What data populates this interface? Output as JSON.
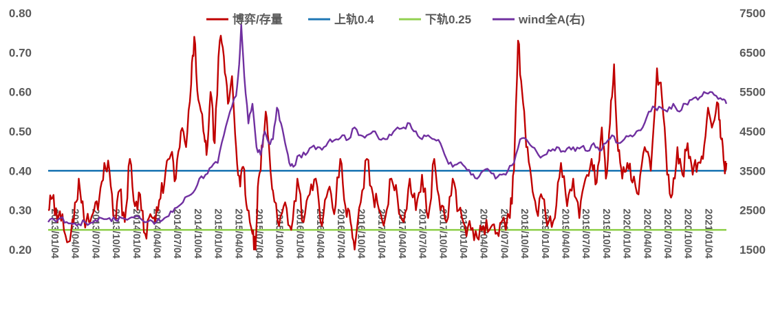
{
  "chart_data": {
    "type": "line",
    "title": "",
    "xlabel": "",
    "ylabel": "",
    "ylim": [
      0.2,
      0.8
    ],
    "y2lim": [
      1500,
      7500
    ],
    "y_ticks": [
      "0.20",
      "0.30",
      "0.40",
      "0.50",
      "0.60",
      "0.70",
      "0.80"
    ],
    "y2_ticks": [
      "1500",
      "2500",
      "3500",
      "4500",
      "5500",
      "6500",
      "7500"
    ],
    "x_ticks": [
      "2013/01/04",
      "2013/04/04",
      "2013/07/04",
      "2013/10/04",
      "2014/01/04",
      "2014/04/04",
      "2014/07/04",
      "2014/10/04",
      "2015/01/04",
      "2015/04/04",
      "2015/07/04",
      "2015/10/04",
      "2016/01/04",
      "2016/04/04",
      "2016/07/04",
      "2016/10/04",
      "2017/01/04",
      "2017/04/04",
      "2017/07/04",
      "2017/10/04",
      "2018/01/04",
      "2018/04/04",
      "2018/07/04",
      "2018/10/04",
      "2019/01/04",
      "2019/04/04",
      "2019/07/04",
      "2019/10/04",
      "2020/01/04",
      "2020/04/04",
      "2020/07/04",
      "2020/10/04",
      "2021/01/04"
    ],
    "legend_position": "top",
    "series": [
      {
        "name": "博弈/存量",
        "axis": "left",
        "color": "#C00000",
        "anchors": [
          [
            0,
            0.3
          ],
          [
            0.2,
            0.33
          ],
          [
            0.45,
            0.27
          ],
          [
            0.7,
            0.29
          ],
          [
            1,
            0.22
          ],
          [
            1.25,
            0.27
          ],
          [
            1.5,
            0.38
          ],
          [
            1.75,
            0.28
          ],
          [
            2,
            0.27
          ],
          [
            2.25,
            0.3
          ],
          [
            2.5,
            0.33
          ],
          [
            2.75,
            0.42
          ],
          [
            3,
            0.4
          ],
          [
            3.25,
            0.28
          ],
          [
            3.5,
            0.35
          ],
          [
            3.75,
            0.27
          ],
          [
            4,
            0.43
          ],
          [
            4.25,
            0.31
          ],
          [
            4.5,
            0.34
          ],
          [
            4.75,
            0.24
          ],
          [
            5,
            0.29
          ],
          [
            5.25,
            0.27
          ],
          [
            5.5,
            0.33
          ],
          [
            5.75,
            0.4
          ],
          [
            6,
            0.44
          ],
          [
            6.25,
            0.38
          ],
          [
            6.5,
            0.5
          ],
          [
            6.75,
            0.46
          ],
          [
            7,
            0.62
          ],
          [
            7.15,
            0.74
          ],
          [
            7.35,
            0.58
          ],
          [
            7.6,
            0.5
          ],
          [
            7.75,
            0.44
          ],
          [
            7.95,
            0.6
          ],
          [
            8.15,
            0.47
          ],
          [
            8.4,
            0.73
          ],
          [
            8.6,
            0.69
          ],
          [
            8.8,
            0.57
          ],
          [
            9,
            0.64
          ],
          [
            9.2,
            0.46
          ],
          [
            9.4,
            0.36
          ],
          [
            9.55,
            0.41
          ],
          [
            9.75,
            0.3
          ],
          [
            10,
            0.24
          ],
          [
            10.15,
            0.2
          ],
          [
            10.3,
            0.38
          ],
          [
            10.5,
            0.46
          ],
          [
            10.65,
            0.55
          ],
          [
            10.85,
            0.43
          ],
          [
            11,
            0.35
          ],
          [
            11.3,
            0.26
          ],
          [
            11.6,
            0.32
          ],
          [
            11.9,
            0.25
          ],
          [
            12.2,
            0.38
          ],
          [
            12.5,
            0.27
          ],
          [
            12.8,
            0.34
          ],
          [
            13.1,
            0.38
          ],
          [
            13.4,
            0.26
          ],
          [
            13.7,
            0.35
          ],
          [
            14,
            0.29
          ],
          [
            14.3,
            0.43
          ],
          [
            14.55,
            0.31
          ],
          [
            14.8,
            0.27
          ],
          [
            15,
            0.2
          ],
          [
            15.3,
            0.32
          ],
          [
            15.6,
            0.43
          ],
          [
            15.9,
            0.34
          ],
          [
            16.2,
            0.3
          ],
          [
            16.5,
            0.28
          ],
          [
            16.8,
            0.38
          ],
          [
            17.1,
            0.33
          ],
          [
            17.4,
            0.27
          ],
          [
            17.7,
            0.38
          ],
          [
            18,
            0.3
          ],
          [
            18.3,
            0.39
          ],
          [
            18.6,
            0.28
          ],
          [
            18.9,
            0.43
          ],
          [
            19.2,
            0.3
          ],
          [
            19.5,
            0.27
          ],
          [
            19.8,
            0.38
          ],
          [
            20.1,
            0.3
          ],
          [
            20.4,
            0.26
          ],
          [
            20.7,
            0.25
          ],
          [
            21,
            0.23
          ],
          [
            21.3,
            0.26
          ],
          [
            21.6,
            0.25
          ],
          [
            21.9,
            0.24
          ],
          [
            22.2,
            0.27
          ],
          [
            22.6,
            0.28
          ],
          [
            22.8,
            0.4
          ],
          [
            23.0,
            0.73
          ],
          [
            23.2,
            0.6
          ],
          [
            23.4,
            0.46
          ],
          [
            23.65,
            0.38
          ],
          [
            23.9,
            0.3
          ],
          [
            24.2,
            0.33
          ],
          [
            24.5,
            0.27
          ],
          [
            24.8,
            0.28
          ],
          [
            25.1,
            0.42
          ],
          [
            25.4,
            0.31
          ],
          [
            25.7,
            0.38
          ],
          [
            26,
            0.28
          ],
          [
            26.3,
            0.38
          ],
          [
            26.6,
            0.43
          ],
          [
            26.85,
            0.37
          ],
          [
            27.1,
            0.51
          ],
          [
            27.3,
            0.38
          ],
          [
            27.5,
            0.52
          ],
          [
            27.7,
            0.67
          ],
          [
            27.9,
            0.45
          ],
          [
            28.1,
            0.38
          ],
          [
            28.35,
            0.42
          ],
          [
            28.6,
            0.37
          ],
          [
            28.9,
            0.34
          ],
          [
            29.2,
            0.46
          ],
          [
            29.5,
            0.4
          ],
          [
            29.8,
            0.66
          ],
          [
            30.05,
            0.58
          ],
          [
            30.3,
            0.39
          ],
          [
            30.55,
            0.34
          ],
          [
            30.8,
            0.46
          ],
          [
            31.05,
            0.39
          ],
          [
            31.3,
            0.47
          ],
          [
            31.55,
            0.39
          ],
          [
            31.8,
            0.42
          ],
          [
            32.05,
            0.43
          ],
          [
            32.3,
            0.56
          ],
          [
            32.55,
            0.52
          ],
          [
            32.8,
            0.57
          ],
          [
            32.95,
            0.48
          ],
          [
            33.1,
            0.41
          ],
          [
            33.2,
            0.42
          ]
        ]
      },
      {
        "name": "上轨0.4",
        "axis": "left",
        "color": "#1F77B4",
        "value": 0.4
      },
      {
        "name": "下轨0.25",
        "axis": "left",
        "color": "#92D050",
        "value": 0.25
      },
      {
        "name": "wind全A(右)",
        "axis": "right",
        "color": "#7030A0",
        "anchors": [
          [
            0,
            2200
          ],
          [
            0.3,
            2250
          ],
          [
            0.6,
            2300
          ],
          [
            0.9,
            2200
          ],
          [
            1.2,
            2150
          ],
          [
            1.5,
            2150
          ],
          [
            1.8,
            2200
          ],
          [
            2,
            2150
          ],
          [
            2.3,
            2250
          ],
          [
            2.6,
            2300
          ],
          [
            3,
            2300
          ],
          [
            3.3,
            2250
          ],
          [
            3.6,
            2300
          ],
          [
            4,
            2300
          ],
          [
            4.3,
            2350
          ],
          [
            4.6,
            2250
          ],
          [
            5,
            2250
          ],
          [
            5.3,
            2200
          ],
          [
            5.6,
            2250
          ],
          [
            5.9,
            2350
          ],
          [
            6.2,
            2550
          ],
          [
            6.5,
            2650
          ],
          [
            6.8,
            2850
          ],
          [
            7.1,
            2950
          ],
          [
            7.4,
            3300
          ],
          [
            7.7,
            3400
          ],
          [
            8.0,
            3600
          ],
          [
            8.3,
            3700
          ],
          [
            8.6,
            4400
          ],
          [
            8.9,
            5000
          ],
          [
            9.2,
            5400
          ],
          [
            9.35,
            6200
          ],
          [
            9.45,
            7200
          ],
          [
            9.6,
            5900
          ],
          [
            9.8,
            4700
          ],
          [
            10,
            5200
          ],
          [
            10.2,
            4100
          ],
          [
            10.4,
            3900
          ],
          [
            10.6,
            4500
          ],
          [
            10.8,
            4200
          ],
          [
            11,
            4300
          ],
          [
            11.2,
            5100
          ],
          [
            11.4,
            4700
          ],
          [
            11.6,
            4200
          ],
          [
            11.8,
            3700
          ],
          [
            12,
            3600
          ],
          [
            12.3,
            3900
          ],
          [
            12.6,
            3900
          ],
          [
            12.9,
            4100
          ],
          [
            13.2,
            4100
          ],
          [
            13.5,
            4100
          ],
          [
            13.8,
            4300
          ],
          [
            14.1,
            4300
          ],
          [
            14.4,
            4400
          ],
          [
            14.7,
            4300
          ],
          [
            15.0,
            4600
          ],
          [
            15.3,
            4400
          ],
          [
            15.6,
            4400
          ],
          [
            15.9,
            4500
          ],
          [
            16.2,
            4300
          ],
          [
            16.5,
            4300
          ],
          [
            16.8,
            4400
          ],
          [
            17.1,
            4600
          ],
          [
            17.4,
            4600
          ],
          [
            17.7,
            4700
          ],
          [
            18.0,
            4500
          ],
          [
            18.3,
            4300
          ],
          [
            18.6,
            4400
          ],
          [
            18.9,
            4300
          ],
          [
            19.2,
            4200
          ],
          [
            19.5,
            3800
          ],
          [
            19.8,
            3600
          ],
          [
            20.1,
            3700
          ],
          [
            20.4,
            3600
          ],
          [
            20.7,
            3400
          ],
          [
            21.0,
            3300
          ],
          [
            21.3,
            3500
          ],
          [
            21.6,
            3500
          ],
          [
            21.9,
            3300
          ],
          [
            22.2,
            3400
          ],
          [
            22.5,
            3500
          ],
          [
            22.8,
            3700
          ],
          [
            23.1,
            4300
          ],
          [
            23.4,
            4300
          ],
          [
            23.7,
            4100
          ],
          [
            24.0,
            3900
          ],
          [
            24.3,
            3900
          ],
          [
            24.6,
            4000
          ],
          [
            24.9,
            4100
          ],
          [
            25.2,
            4000
          ],
          [
            25.5,
            4100
          ],
          [
            25.8,
            4000
          ],
          [
            26.1,
            4100
          ],
          [
            26.4,
            4000
          ],
          [
            26.7,
            4200
          ],
          [
            27.0,
            4000
          ],
          [
            27.3,
            4200
          ],
          [
            27.6,
            4400
          ],
          [
            27.9,
            4200
          ],
          [
            28.2,
            4300
          ],
          [
            28.5,
            4400
          ],
          [
            28.8,
            4500
          ],
          [
            29.1,
            4600
          ],
          [
            29.4,
            5000
          ],
          [
            29.7,
            5100
          ],
          [
            30.0,
            5100
          ],
          [
            30.3,
            5000
          ],
          [
            30.6,
            5200
          ],
          [
            30.9,
            5000
          ],
          [
            31.2,
            5200
          ],
          [
            31.5,
            5300
          ],
          [
            31.8,
            5300
          ],
          [
            32.1,
            5500
          ],
          [
            32.4,
            5500
          ],
          [
            32.7,
            5400
          ],
          [
            33.0,
            5300
          ],
          [
            33.2,
            5200
          ]
        ]
      }
    ]
  }
}
